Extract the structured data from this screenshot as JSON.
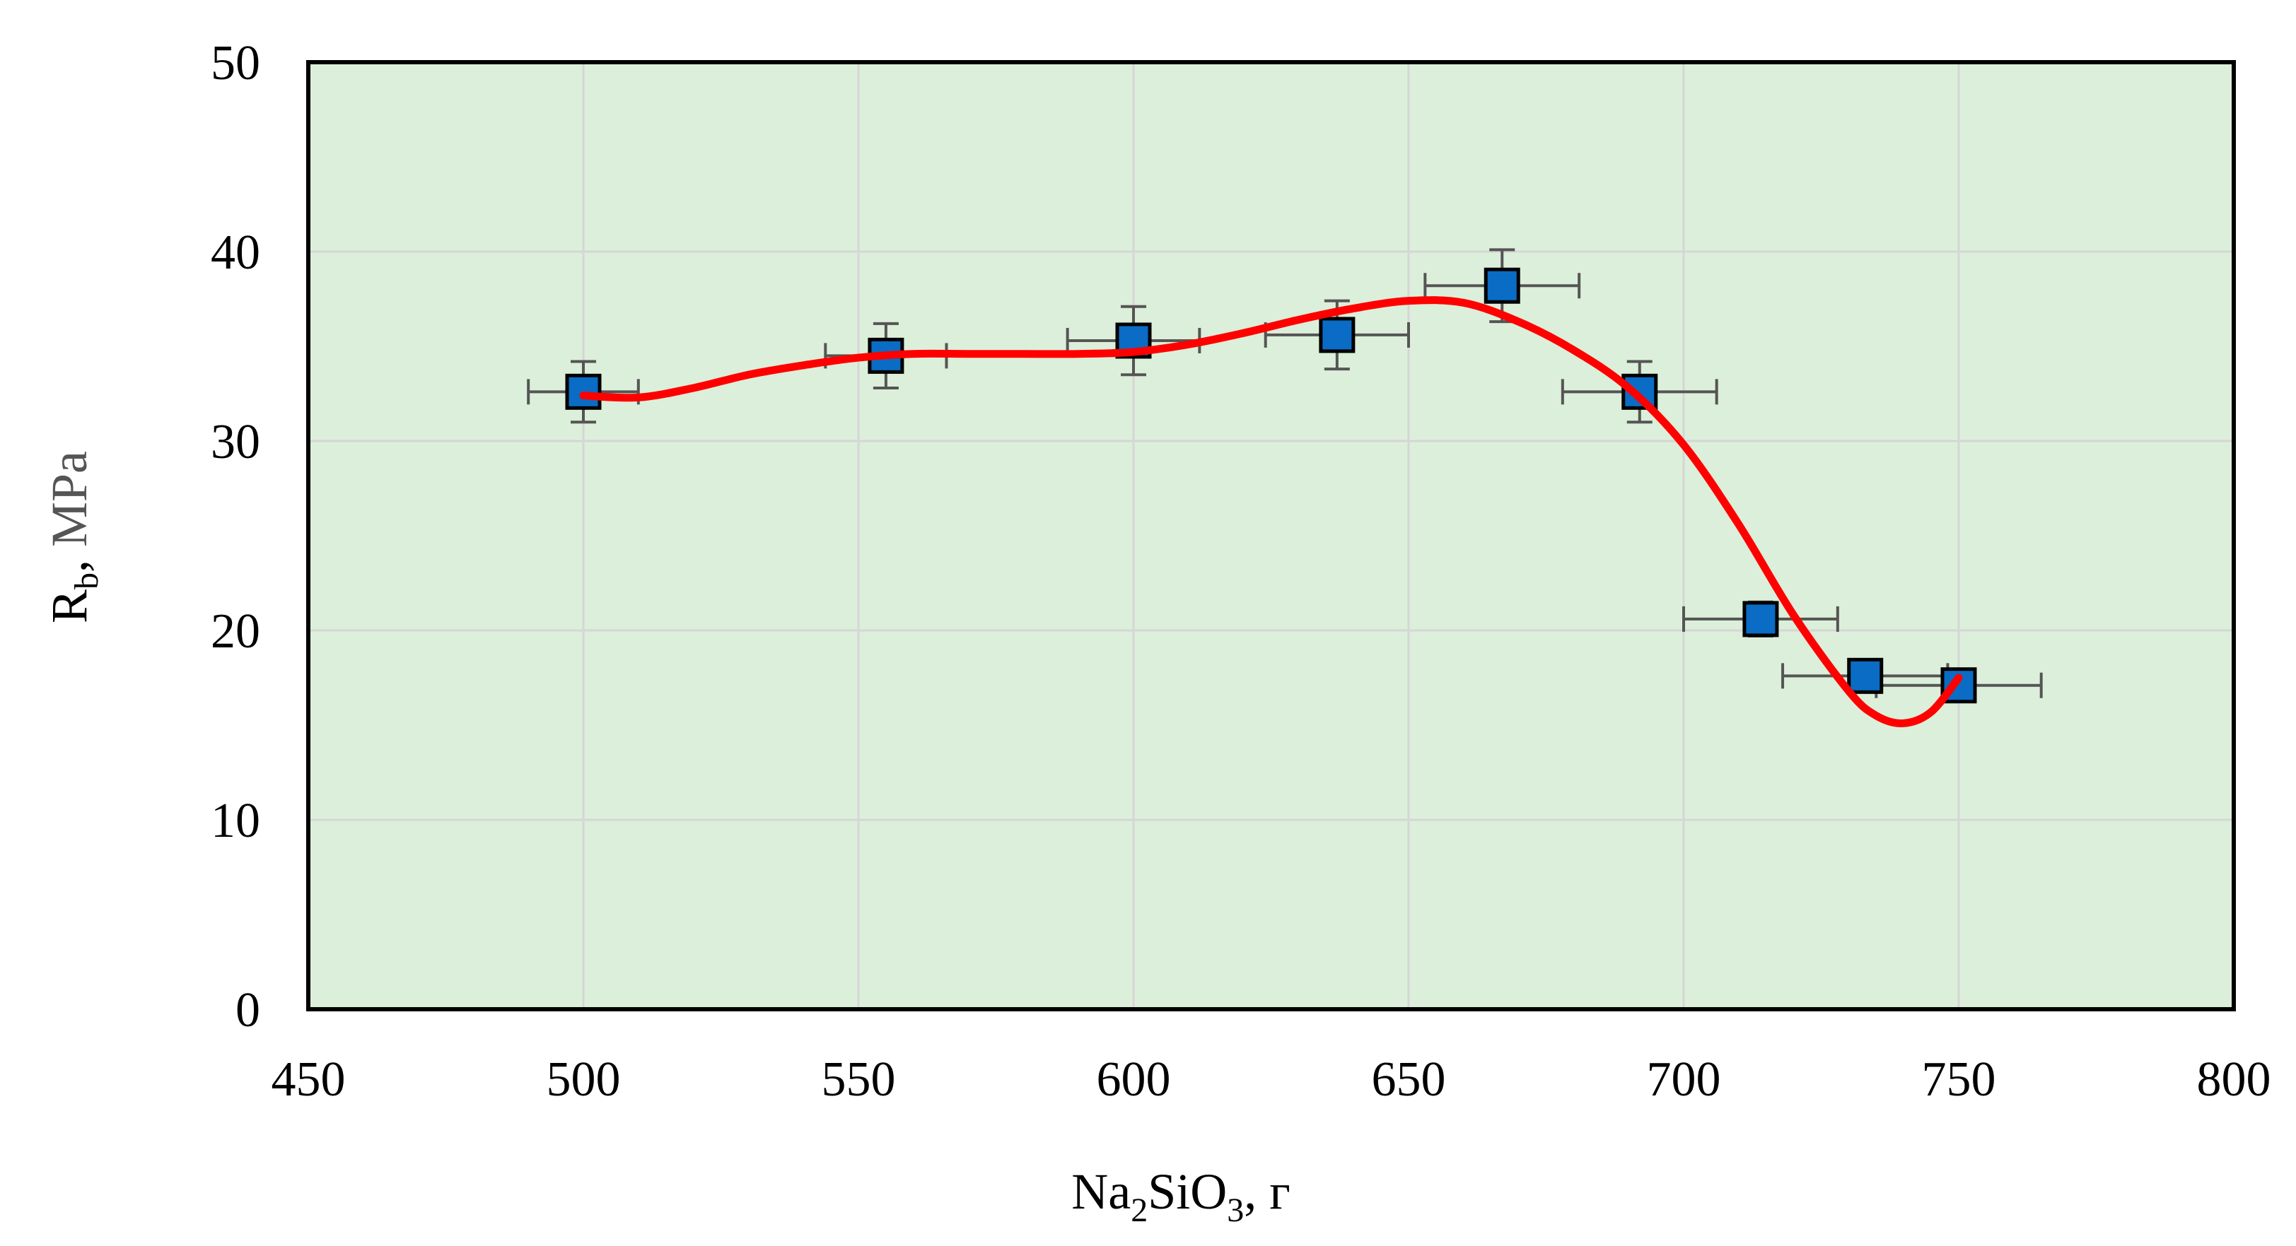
{
  "chart_data": {
    "type": "scatter",
    "xlabel": {
      "main": "Na",
      "sub1": "2",
      "mid": "SiO",
      "sub2": "3",
      "tail": ", г"
    },
    "ylabel": {
      "main": "R",
      "sub": "b",
      "tail": ", ",
      "unit": "MPa"
    },
    "xlim": [
      450,
      800
    ],
    "ylim": [
      0,
      50
    ],
    "x_ticks": [
      "450",
      "500",
      "550",
      "600",
      "650",
      "700",
      "750",
      "800"
    ],
    "y_ticks": [
      "0",
      "10",
      "20",
      "30",
      "40",
      "50"
    ],
    "grid": true,
    "points": [
      {
        "x": 500,
        "y": 32.6,
        "x_err": 10,
        "y_err": 1.6
      },
      {
        "x": 555,
        "y": 34.5,
        "x_err": 11,
        "y_err": 1.7
      },
      {
        "x": 600,
        "y": 35.3,
        "x_err": 12,
        "y_err": 1.8
      },
      {
        "x": 637,
        "y": 35.6,
        "x_err": 13,
        "y_err": 1.8
      },
      {
        "x": 667,
        "y": 38.2,
        "x_err": 14,
        "y_err": 1.9
      },
      {
        "x": 692,
        "y": 32.6,
        "x_err": 14,
        "y_err": 1.6
      },
      {
        "x": 714,
        "y": 20.6,
        "x_err": 14,
        "y_err": 0.9
      },
      {
        "x": 733,
        "y": 17.6,
        "x_err": 15,
        "y_err": 0.6
      },
      {
        "x": 750,
        "y": 17.1,
        "x_err": 15,
        "y_err": 0.5
      }
    ],
    "trend_line": [
      [
        500,
        32.4
      ],
      [
        510,
        32.3
      ],
      [
        520,
        32.8
      ],
      [
        530,
        33.5
      ],
      [
        540,
        34.0
      ],
      [
        550,
        34.4
      ],
      [
        560,
        34.6
      ],
      [
        570,
        34.6
      ],
      [
        580,
        34.6
      ],
      [
        590,
        34.6
      ],
      [
        600,
        34.7
      ],
      [
        610,
        35.1
      ],
      [
        620,
        35.7
      ],
      [
        630,
        36.4
      ],
      [
        640,
        37.0
      ],
      [
        650,
        37.4
      ],
      [
        660,
        37.3
      ],
      [
        670,
        36.3
      ],
      [
        680,
        34.8
      ],
      [
        690,
        32.8
      ],
      [
        700,
        29.8
      ],
      [
        710,
        25.6
      ],
      [
        720,
        20.8
      ],
      [
        730,
        16.8
      ],
      [
        735,
        15.5
      ],
      [
        740,
        15.1
      ],
      [
        745,
        15.7
      ],
      [
        750,
        17.5
      ]
    ],
    "colors": {
      "plot_bg": "#dcefda",
      "grid": "#d6d6d6",
      "marker_fill": "#0a6cc4",
      "marker_stroke": "#000000",
      "errorbar": "#555555",
      "trend": "#ff0000"
    }
  }
}
